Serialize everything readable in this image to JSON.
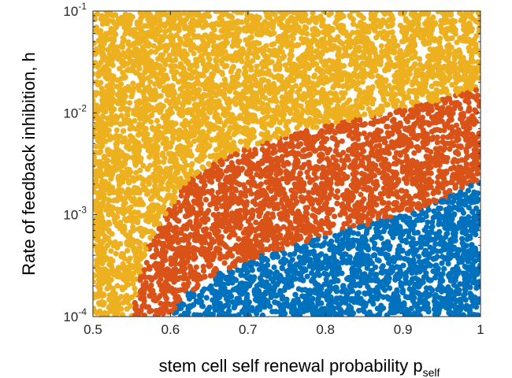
{
  "chart_data": {
    "type": "scatter",
    "title": "",
    "xlabel": {
      "main": "stem cell self renewal probability p",
      "subscript": "self"
    },
    "ylabel": "Rate of feedback inhibition, h",
    "xlim": [
      0.5,
      1.0
    ],
    "ylim": [
      0.0001,
      0.1
    ],
    "yscale": "log",
    "grid": false,
    "legend": "none",
    "x_ticks": [
      {
        "value": 0.5,
        "label": "0.5"
      },
      {
        "value": 0.6,
        "label": "0.6"
      },
      {
        "value": 0.7,
        "label": "0.7"
      },
      {
        "value": 0.8,
        "label": "0.8"
      },
      {
        "value": 0.9,
        "label": "0.9"
      },
      {
        "value": 1.0,
        "label": "1"
      }
    ],
    "y_ticks": [
      {
        "value": 0.0001,
        "base": "10",
        "exp": "-4"
      },
      {
        "value": 0.001,
        "base": "10",
        "exp": "-3"
      },
      {
        "value": 0.01,
        "base": "10",
        "exp": "-2"
      },
      {
        "value": 0.1,
        "base": "10",
        "exp": "-1"
      }
    ],
    "series": [
      {
        "color": "#EDB120",
        "region": "above upper boundary",
        "values": []
      },
      {
        "color": "#D95319",
        "region": "between boundaries",
        "values": []
      },
      {
        "color": "#0072BD",
        "region": "below lower boundary",
        "values": []
      }
    ],
    "boundaries": {
      "upper": {
        "x": [
          0.55,
          0.56,
          0.575,
          0.6,
          0.625,
          0.65,
          0.7,
          0.75,
          0.8,
          0.85,
          0.9,
          0.95,
          1.0
        ],
        "h": [
          0.0001,
          0.00025,
          0.0006,
          0.0012,
          0.0022,
          0.003,
          0.0045,
          0.006,
          0.0075,
          0.009,
          0.011,
          0.0135,
          0.018
        ]
      },
      "lower": {
        "x": [
          0.6,
          0.62,
          0.65,
          0.7,
          0.75,
          0.8,
          0.85,
          0.9,
          0.95,
          1.0
        ],
        "h": [
          0.0001,
          0.00016,
          0.00024,
          0.00036,
          0.00048,
          0.00062,
          0.00078,
          0.001,
          0.0014,
          0.0022
        ]
      }
    }
  }
}
